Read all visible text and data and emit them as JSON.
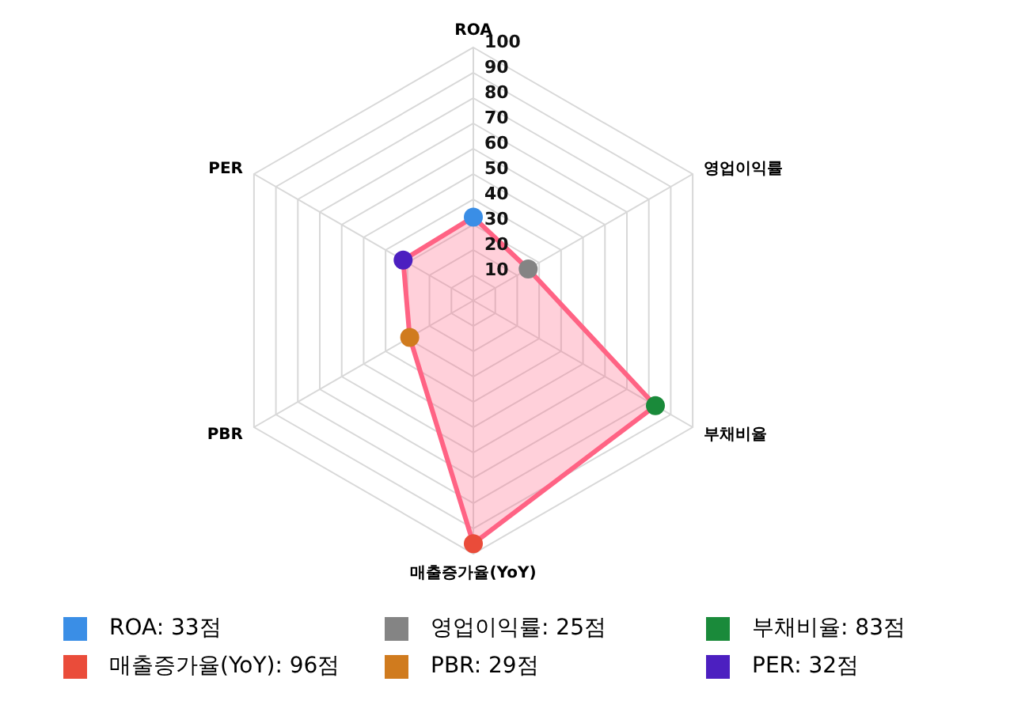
{
  "chart_data": {
    "type": "radar",
    "categories": [
      "ROA",
      "영업이익률",
      "부채비율",
      "매출증가율(YoY)",
      "PBR",
      "PER"
    ],
    "series": [
      {
        "color": "#ff6384",
        "colors": [
          "#3a8ee6",
          "#848484",
          "#1a8a3a",
          "#ea4c3a",
          "#d07b1e",
          "#4c1fc0"
        ],
        "values": [
          33,
          25,
          83,
          96,
          29,
          32
        ]
      }
    ],
    "ylim": [
      0,
      100
    ],
    "yticks": [
      10,
      20,
      30,
      40,
      50,
      60,
      70,
      80,
      90,
      100
    ],
    "grid": true,
    "marker": "circle",
    "annotations": [
      "ROA: 33점",
      "영업이익률: 25점",
      "부채비율: 83점",
      "매출증가율(YoY): 96점",
      "PBR: 29점",
      "PER: 32점"
    ]
  }
}
